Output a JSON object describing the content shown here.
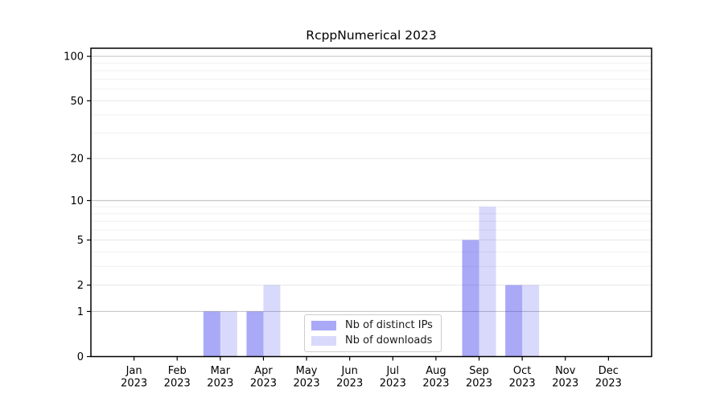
{
  "figure": {
    "title": "RcppNumerical 2023"
  },
  "chart_data": {
    "type": "bar",
    "title": "RcppNumerical 2023",
    "categories": [
      "Jan",
      "Feb",
      "Mar",
      "Apr",
      "May",
      "Jun",
      "Jul",
      "Aug",
      "Sep",
      "Oct",
      "Nov",
      "Dec"
    ],
    "year_label": "2023",
    "series": [
      {
        "name": "Nb of distinct IPs",
        "color": "rgba(30,30,235,0.38)",
        "color_hex": "#a9a9f7",
        "values": [
          0,
          0,
          1,
          1,
          0,
          0,
          0,
          0,
          5,
          2,
          0,
          0
        ]
      },
      {
        "name": "Nb of downloads",
        "color": "rgba(30,30,235,0.17)",
        "color_hex": "#d9d9fb",
        "values": [
          0,
          0,
          1,
          2,
          0,
          0,
          0,
          0,
          9,
          2,
          0,
          0
        ]
      }
    ],
    "yscale": "log1p",
    "yticks": [
      0,
      1,
      2,
      5,
      10,
      20,
      50,
      100
    ],
    "yticks_minor": [
      3,
      4,
      6,
      7,
      8,
      9,
      30,
      40,
      60,
      70,
      80,
      90
    ],
    "ylim": [
      0,
      113.4
    ],
    "grid": true,
    "legend_position": "inside-bottom-center-left",
    "colors": {
      "grid_major_power10": "#c8c8c8",
      "grid_major": "#e6e6e6",
      "grid_minor": "#f0f0f0",
      "frame": "#000000",
      "tick_label": "#000000"
    }
  }
}
